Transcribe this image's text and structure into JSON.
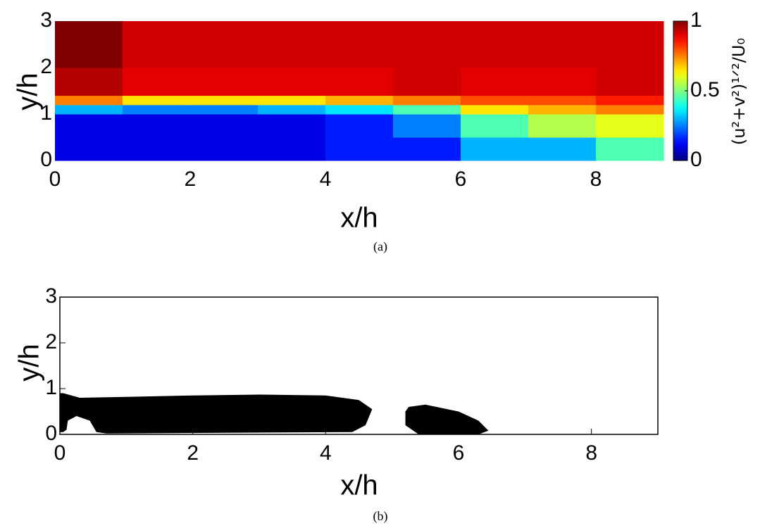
{
  "chart_data": [
    {
      "type": "heatmap",
      "xlabel": "x/h",
      "ylabel": "y/h",
      "colorbar_label": "(u²+v²)¹ᐟ²/U₀",
      "caption": "(a)",
      "xlim": [
        0,
        9
      ],
      "ylim": [
        0,
        3
      ],
      "xticks": [
        0,
        2,
        4,
        6,
        8
      ],
      "yticks": [
        0,
        1,
        2,
        3
      ],
      "clim": [
        0,
        1
      ],
      "cticks": [
        0,
        0.5,
        1
      ],
      "colormap": "jet",
      "x_edges": [
        0,
        1,
        2,
        3,
        4,
        5,
        6,
        7,
        8,
        9
      ],
      "y_edges": [
        0,
        0.5,
        1,
        1.2,
        1.4,
        2,
        3
      ],
      "values": [
        [
          0.1,
          0.1,
          0.1,
          0.1,
          0.15,
          0.15,
          0.3,
          0.3,
          0.45
        ],
        [
          0.1,
          0.1,
          0.1,
          0.1,
          0.15,
          0.25,
          0.45,
          0.55,
          0.6
        ],
        [
          0.3,
          0.25,
          0.25,
          0.3,
          0.35,
          0.45,
          0.65,
          0.7,
          0.75
        ],
        [
          0.75,
          0.65,
          0.65,
          0.65,
          0.7,
          0.75,
          0.8,
          0.8,
          0.85
        ],
        [
          0.95,
          0.9,
          0.9,
          0.9,
          0.9,
          0.92,
          0.9,
          0.9,
          0.92
        ],
        [
          1,
          0.92,
          0.92,
          0.92,
          0.92,
          0.92,
          0.92,
          0.92,
          0.92
        ]
      ]
    },
    {
      "type": "mask",
      "xlabel": "x/h",
      "ylabel": "y/h",
      "caption": "(b)",
      "xlim": [
        0,
        9
      ],
      "ylim": [
        0,
        3
      ],
      "xticks": [
        0,
        2,
        4,
        6,
        8
      ],
      "yticks": [
        0,
        1,
        2,
        3
      ],
      "color": "#000000",
      "regions": [
        {
          "x": [
            0.05,
            0.3,
            1,
            2,
            3,
            4,
            4.5,
            4.7,
            4.6,
            4.4,
            0.7,
            0.55,
            0.45,
            0.25,
            0.12,
            0.1,
            0.05,
            0,
            0
          ],
          "y": [
            0.9,
            0.8,
            0.82,
            0.85,
            0.87,
            0.85,
            0.75,
            0.55,
            0.2,
            0.05,
            0.02,
            0.05,
            0.3,
            0.4,
            0.3,
            0.1,
            0.05,
            0.05,
            0.9
          ]
        },
        {
          "x": [
            5.25,
            5.5,
            6,
            6.3,
            6.45,
            6.3,
            5.4,
            5.2,
            5.2
          ],
          "y": [
            0.6,
            0.65,
            0.5,
            0.3,
            0.08,
            0,
            0,
            0.2,
            0.5
          ]
        }
      ]
    }
  ]
}
